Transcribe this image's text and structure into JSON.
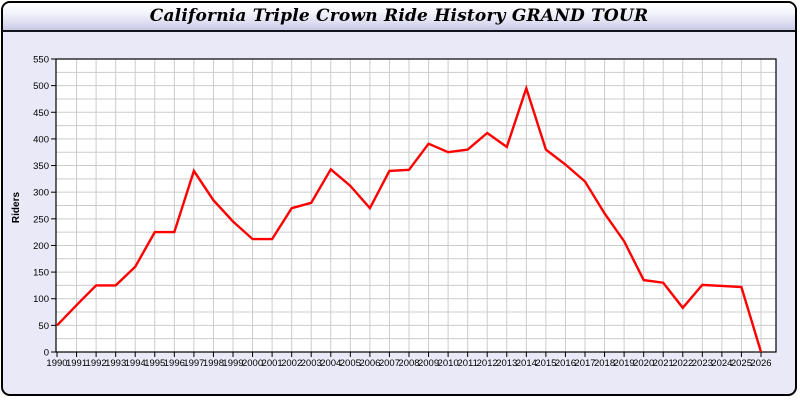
{
  "window": {
    "title": "California Triple Crown Ride History GRAND TOUR"
  },
  "colors": {
    "page_bg": "#e9e9f7",
    "plot_bg": "#ffffff",
    "grid": "#cccccc",
    "axis": "#000000",
    "line": "#ff0000",
    "titlebar_top": "#ffffff",
    "titlebar_bottom": "#c7c7e4"
  },
  "chart_data": {
    "type": "line",
    "title": "California Triple Crown Ride History GRAND TOUR",
    "xlabel": "",
    "ylabel": "Riders",
    "x": [
      1990,
      1991,
      1992,
      1993,
      1994,
      1995,
      1996,
      1997,
      1998,
      1999,
      2000,
      2001,
      2002,
      2003,
      2004,
      2005,
      2006,
      2007,
      2008,
      2009,
      2010,
      2011,
      2012,
      2013,
      2014,
      2015,
      2016,
      2017,
      2018,
      2019,
      2020,
      2021,
      2022,
      2023,
      2024,
      2025,
      2026
    ],
    "series": [
      {
        "name": "Riders",
        "color": "#ff0000",
        "values": [
          50,
          88,
          125,
          125,
          160,
          225,
          225,
          340,
          285,
          245,
          212,
          212,
          270,
          280,
          343,
          312,
          270,
          340,
          342,
          391,
          375,
          380,
          411,
          385,
          495,
          380,
          352,
          320,
          260,
          208,
          135,
          130,
          83,
          126,
          124,
          122,
          0
        ]
      }
    ],
    "ylim": [
      0,
      550
    ],
    "yticks": [
      0,
      50,
      100,
      150,
      200,
      250,
      300,
      350,
      400,
      450,
      500,
      550
    ],
    "grid": true,
    "grid_minor_step": 25,
    "legend_position": "none"
  }
}
